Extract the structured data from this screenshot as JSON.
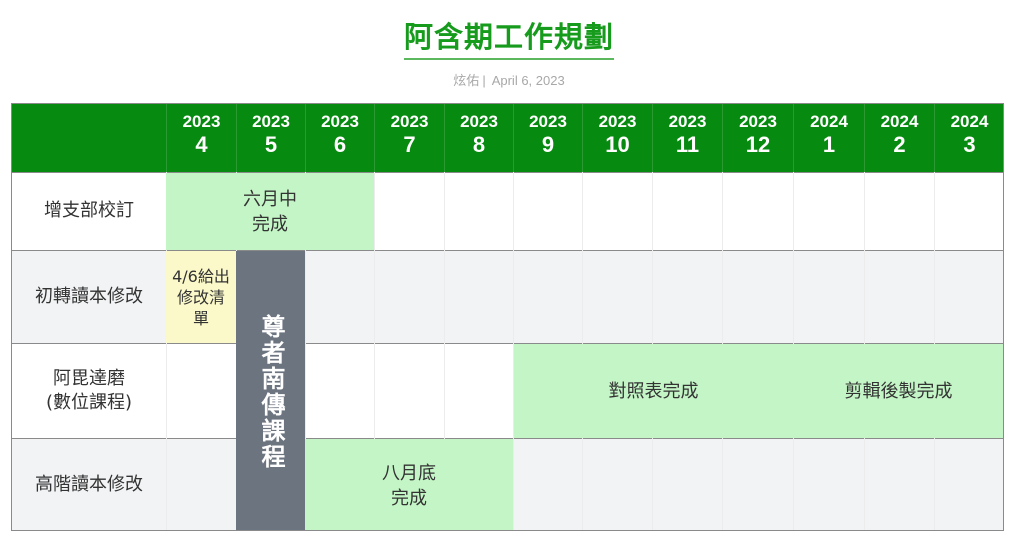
{
  "title": "阿含期工作規劃",
  "meta": {
    "author": "炫佑",
    "separator": "|",
    "date": "April 6, 2023"
  },
  "colors": {
    "header": "#078a10",
    "done": "#c4f5c6",
    "note": "#fbf9c9",
    "course": "#6c7480",
    "title": "#169b1c"
  },
  "months": [
    {
      "year": "2023",
      "month": "4"
    },
    {
      "year": "2023",
      "month": "5"
    },
    {
      "year": "2023",
      "month": "6"
    },
    {
      "year": "2023",
      "month": "7"
    },
    {
      "year": "2023",
      "month": "8"
    },
    {
      "year": "2023",
      "month": "9"
    },
    {
      "year": "2023",
      "month": "10"
    },
    {
      "year": "2023",
      "month": "11"
    },
    {
      "year": "2023",
      "month": "12"
    },
    {
      "year": "2024",
      "month": "1"
    },
    {
      "year": "2024",
      "month": "2"
    },
    {
      "year": "2024",
      "month": "3"
    }
  ],
  "rows": [
    {
      "label": "增支部校訂"
    },
    {
      "label": "初轉讀本修改"
    },
    {
      "label": "阿毘達磨\n(數位課程)"
    },
    {
      "label": "高階讀本修改"
    }
  ],
  "tasks": {
    "zengzhi": {
      "text": "六月中\n完成",
      "start": "2023-5",
      "end": "2023-6"
    },
    "chuzhuan_note": {
      "text": "4/6給出\n修改清\n單",
      "start": "2023-4",
      "end": "2023-4"
    },
    "course": {
      "text": "尊者南傳課程",
      "start": "2023-5",
      "end": "2023-5"
    },
    "abhidhamma_compare": {
      "text": "對照表完成",
      "start": "2023-9",
      "end": "2023-12"
    },
    "abhidhamma_edit": {
      "text": "剪輯後製完成",
      "start": "2024-1",
      "end": "2024-3"
    },
    "gaojie": {
      "text": "八月底\n完成",
      "start": "2023-6",
      "end": "2023-8"
    }
  }
}
